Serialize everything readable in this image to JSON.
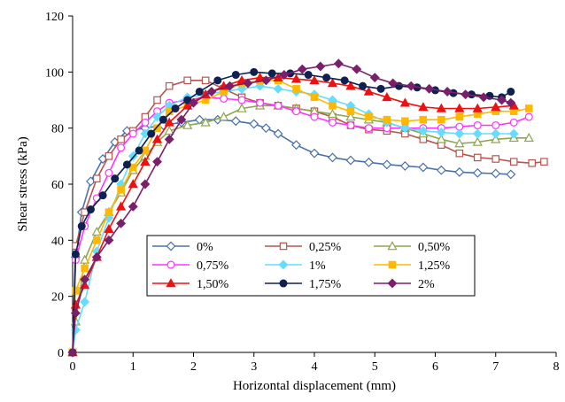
{
  "chart_data": {
    "type": "line",
    "xlabel": "Horizontal  displacement (mm)",
    "ylabel": "Shear stress (kPa)",
    "xlim": [
      0,
      8
    ],
    "ylim": [
      0,
      120
    ],
    "x_ticks": [
      "0",
      "1",
      "2",
      "3",
      "4",
      "5",
      "6",
      "7",
      "8"
    ],
    "y_ticks": [
      "0",
      "20",
      "40",
      "60",
      "80",
      "100",
      "120"
    ],
    "grid": false,
    "legend_position": "lower-center, inside plot",
    "series": [
      {
        "name": "0%",
        "color": "#4a72a8",
        "marker": "diamond-open",
        "points": [
          [
            0,
            0
          ],
          [
            0.05,
            34
          ],
          [
            0.15,
            50
          ],
          [
            0.3,
            61
          ],
          [
            0.5,
            69
          ],
          [
            0.7,
            75
          ],
          [
            0.9,
            79
          ],
          [
            1.2,
            80
          ],
          [
            1.5,
            81
          ],
          [
            1.8,
            82
          ],
          [
            2.1,
            83
          ],
          [
            2.4,
            83
          ],
          [
            2.7,
            82.5
          ],
          [
            3.0,
            81.5
          ],
          [
            3.2,
            80
          ],
          [
            3.4,
            78
          ],
          [
            3.7,
            74
          ],
          [
            4.0,
            71
          ],
          [
            4.3,
            69.5
          ],
          [
            4.6,
            68.5
          ],
          [
            4.9,
            67.8
          ],
          [
            5.2,
            67
          ],
          [
            5.5,
            66.5
          ],
          [
            5.8,
            66
          ],
          [
            6.1,
            65
          ],
          [
            6.4,
            64.3
          ],
          [
            6.7,
            64
          ],
          [
            7.0,
            63.8
          ],
          [
            7.25,
            63.5
          ]
        ]
      },
      {
        "name": "0,25%",
        "color": "#b5564e",
        "marker": "square-open",
        "points": [
          [
            0,
            0
          ],
          [
            0.05,
            38
          ],
          [
            0.2,
            50
          ],
          [
            0.4,
            62
          ],
          [
            0.6,
            70
          ],
          [
            0.8,
            76
          ],
          [
            1.0,
            79
          ],
          [
            1.2,
            84
          ],
          [
            1.4,
            90
          ],
          [
            1.6,
            95
          ],
          [
            1.9,
            97
          ],
          [
            2.2,
            97
          ],
          [
            2.5,
            94
          ],
          [
            2.8,
            91
          ],
          [
            3.1,
            89
          ],
          [
            3.4,
            88
          ],
          [
            3.7,
            87
          ],
          [
            4.0,
            86
          ],
          [
            4.3,
            84
          ],
          [
            4.6,
            81
          ],
          [
            4.9,
            79.5
          ],
          [
            5.2,
            79
          ],
          [
            5.5,
            78
          ],
          [
            5.8,
            76
          ],
          [
            6.1,
            74
          ],
          [
            6.4,
            71
          ],
          [
            6.7,
            69.5
          ],
          [
            7.0,
            69
          ],
          [
            7.3,
            68
          ],
          [
            7.6,
            67.5
          ],
          [
            7.8,
            68
          ]
        ]
      },
      {
        "name": "0,50%",
        "color": "#8da64e",
        "marker": "triangle-open",
        "points": [
          [
            0,
            0
          ],
          [
            0.05,
            11
          ],
          [
            0.2,
            33
          ],
          [
            0.4,
            43
          ],
          [
            0.6,
            50
          ],
          [
            0.8,
            57
          ],
          [
            1.0,
            65
          ],
          [
            1.2,
            70
          ],
          [
            1.4,
            75
          ],
          [
            1.6,
            79
          ],
          [
            1.9,
            81
          ],
          [
            2.2,
            82
          ],
          [
            2.5,
            84
          ],
          [
            2.8,
            87
          ],
          [
            3.1,
            88
          ],
          [
            3.4,
            88
          ],
          [
            3.7,
            87
          ],
          [
            4.0,
            86
          ],
          [
            4.3,
            85
          ],
          [
            4.6,
            84
          ],
          [
            4.9,
            83
          ],
          [
            5.2,
            82
          ],
          [
            5.5,
            80
          ],
          [
            5.8,
            78
          ],
          [
            6.1,
            76
          ],
          [
            6.4,
            74.5
          ],
          [
            6.7,
            75
          ],
          [
            7.0,
            76
          ],
          [
            7.3,
            76.5
          ],
          [
            7.55,
            76.5
          ]
        ]
      },
      {
        "name": "0,75%",
        "color": "#ff33ff",
        "marker": "circle-open",
        "points": [
          [
            0,
            0
          ],
          [
            0.05,
            33
          ],
          [
            0.2,
            45
          ],
          [
            0.4,
            55
          ],
          [
            0.6,
            64
          ],
          [
            0.8,
            73
          ],
          [
            1.0,
            78
          ],
          [
            1.2,
            82
          ],
          [
            1.4,
            86
          ],
          [
            1.6,
            89
          ],
          [
            1.9,
            90
          ],
          [
            2.2,
            91
          ],
          [
            2.5,
            90.5
          ],
          [
            2.8,
            90
          ],
          [
            3.1,
            89
          ],
          [
            3.4,
            88
          ],
          [
            3.7,
            86
          ],
          [
            4.0,
            84
          ],
          [
            4.3,
            82
          ],
          [
            4.6,
            81
          ],
          [
            4.9,
            80
          ],
          [
            5.2,
            80
          ],
          [
            5.5,
            80
          ],
          [
            5.8,
            80
          ],
          [
            6.1,
            80
          ],
          [
            6.4,
            80.5
          ],
          [
            6.7,
            81
          ],
          [
            7.0,
            81
          ],
          [
            7.3,
            82
          ],
          [
            7.55,
            84
          ]
        ]
      },
      {
        "name": "1%",
        "color": "#66ddff",
        "marker": "diamond-filled",
        "points": [
          [
            0,
            0
          ],
          [
            0.05,
            8
          ],
          [
            0.2,
            18
          ],
          [
            0.4,
            36
          ],
          [
            0.6,
            48
          ],
          [
            0.8,
            60
          ],
          [
            1.0,
            70
          ],
          [
            1.2,
            78
          ],
          [
            1.4,
            84
          ],
          [
            1.6,
            88
          ],
          [
            1.9,
            91
          ],
          [
            2.2,
            92
          ],
          [
            2.5,
            93
          ],
          [
            2.8,
            94
          ],
          [
            3.1,
            95
          ],
          [
            3.4,
            94
          ],
          [
            3.7,
            93
          ],
          [
            4.0,
            92
          ],
          [
            4.3,
            90
          ],
          [
            4.6,
            88
          ],
          [
            4.9,
            85
          ],
          [
            5.2,
            82
          ],
          [
            5.5,
            80
          ],
          [
            5.8,
            79
          ],
          [
            6.1,
            78.5
          ],
          [
            6.4,
            78
          ],
          [
            6.7,
            78
          ],
          [
            7.0,
            78
          ],
          [
            7.3,
            78
          ]
        ]
      },
      {
        "name": "1,25%",
        "color": "#ffb800",
        "marker": "square-filled",
        "points": [
          [
            0,
            0
          ],
          [
            0.05,
            22
          ],
          [
            0.2,
            30
          ],
          [
            0.4,
            40
          ],
          [
            0.6,
            50
          ],
          [
            0.8,
            58
          ],
          [
            1.0,
            66
          ],
          [
            1.2,
            72
          ],
          [
            1.4,
            80
          ],
          [
            1.6,
            86
          ],
          [
            1.9,
            88
          ],
          [
            2.2,
            90
          ],
          [
            2.5,
            93
          ],
          [
            2.8,
            96
          ],
          [
            3.1,
            97
          ],
          [
            3.4,
            97
          ],
          [
            3.7,
            94
          ],
          [
            4.0,
            91
          ],
          [
            4.3,
            88
          ],
          [
            4.6,
            86
          ],
          [
            4.9,
            84
          ],
          [
            5.2,
            83
          ],
          [
            5.5,
            82.5
          ],
          [
            5.8,
            83
          ],
          [
            6.1,
            83
          ],
          [
            6.4,
            84
          ],
          [
            6.7,
            85
          ],
          [
            7.0,
            86
          ],
          [
            7.3,
            86
          ],
          [
            7.55,
            87
          ]
        ]
      },
      {
        "name": "1,50%",
        "color": "#ee1111",
        "marker": "triangle-filled",
        "points": [
          [
            0,
            0
          ],
          [
            0.05,
            17
          ],
          [
            0.2,
            24
          ],
          [
            0.4,
            34
          ],
          [
            0.6,
            44
          ],
          [
            0.8,
            52
          ],
          [
            1.0,
            60
          ],
          [
            1.2,
            68
          ],
          [
            1.4,
            76
          ],
          [
            1.6,
            82
          ],
          [
            1.9,
            88
          ],
          [
            2.2,
            92
          ],
          [
            2.5,
            95
          ],
          [
            2.8,
            97
          ],
          [
            3.1,
            98
          ],
          [
            3.4,
            98
          ],
          [
            3.7,
            97.5
          ],
          [
            4.0,
            97
          ],
          [
            4.3,
            96
          ],
          [
            4.6,
            95
          ],
          [
            4.9,
            93
          ],
          [
            5.2,
            91
          ],
          [
            5.5,
            89
          ],
          [
            5.8,
            87.5
          ],
          [
            6.1,
            87
          ],
          [
            6.4,
            87
          ],
          [
            6.7,
            87
          ],
          [
            7.0,
            87.5
          ],
          [
            7.3,
            88
          ]
        ]
      },
      {
        "name": "1,75%",
        "color": "#102050",
        "marker": "circle-filled",
        "points": [
          [
            0,
            0
          ],
          [
            0.05,
            35
          ],
          [
            0.15,
            45
          ],
          [
            0.3,
            51
          ],
          [
            0.5,
            56
          ],
          [
            0.7,
            62
          ],
          [
            0.9,
            67
          ],
          [
            1.1,
            72
          ],
          [
            1.3,
            78
          ],
          [
            1.5,
            83
          ],
          [
            1.7,
            87
          ],
          [
            1.9,
            90
          ],
          [
            2.1,
            93
          ],
          [
            2.4,
            97
          ],
          [
            2.7,
            99
          ],
          [
            3.0,
            100
          ],
          [
            3.3,
            99.5
          ],
          [
            3.6,
            99.5
          ],
          [
            3.9,
            99
          ],
          [
            4.2,
            98
          ],
          [
            4.5,
            97
          ],
          [
            4.8,
            95
          ],
          [
            5.1,
            94
          ],
          [
            5.4,
            95
          ],
          [
            5.7,
            94.5
          ],
          [
            6.0,
            93.5
          ],
          [
            6.3,
            92.5
          ],
          [
            6.6,
            92
          ],
          [
            6.9,
            91.5
          ],
          [
            7.1,
            91
          ],
          [
            7.25,
            93
          ]
        ]
      },
      {
        "name": "2%",
        "color": "#7a1f6a",
        "marker": "diamond-filled",
        "points": [
          [
            0,
            0
          ],
          [
            0.05,
            14
          ],
          [
            0.2,
            26
          ],
          [
            0.4,
            34
          ],
          [
            0.6,
            40
          ],
          [
            0.8,
            46
          ],
          [
            1.0,
            52
          ],
          [
            1.2,
            60
          ],
          [
            1.4,
            68
          ],
          [
            1.6,
            76
          ],
          [
            1.8,
            83
          ],
          [
            2.0,
            89
          ],
          [
            2.3,
            93
          ],
          [
            2.6,
            95
          ],
          [
            2.9,
            96
          ],
          [
            3.2,
            97
          ],
          [
            3.5,
            99
          ],
          [
            3.8,
            101
          ],
          [
            4.1,
            102
          ],
          [
            4.4,
            103
          ],
          [
            4.7,
            101
          ],
          [
            5.0,
            98
          ],
          [
            5.3,
            96
          ],
          [
            5.6,
            95
          ],
          [
            5.9,
            94
          ],
          [
            6.2,
            93
          ],
          [
            6.5,
            92
          ],
          [
            6.8,
            91
          ],
          [
            7.1,
            90
          ],
          [
            7.25,
            89
          ]
        ]
      }
    ]
  }
}
